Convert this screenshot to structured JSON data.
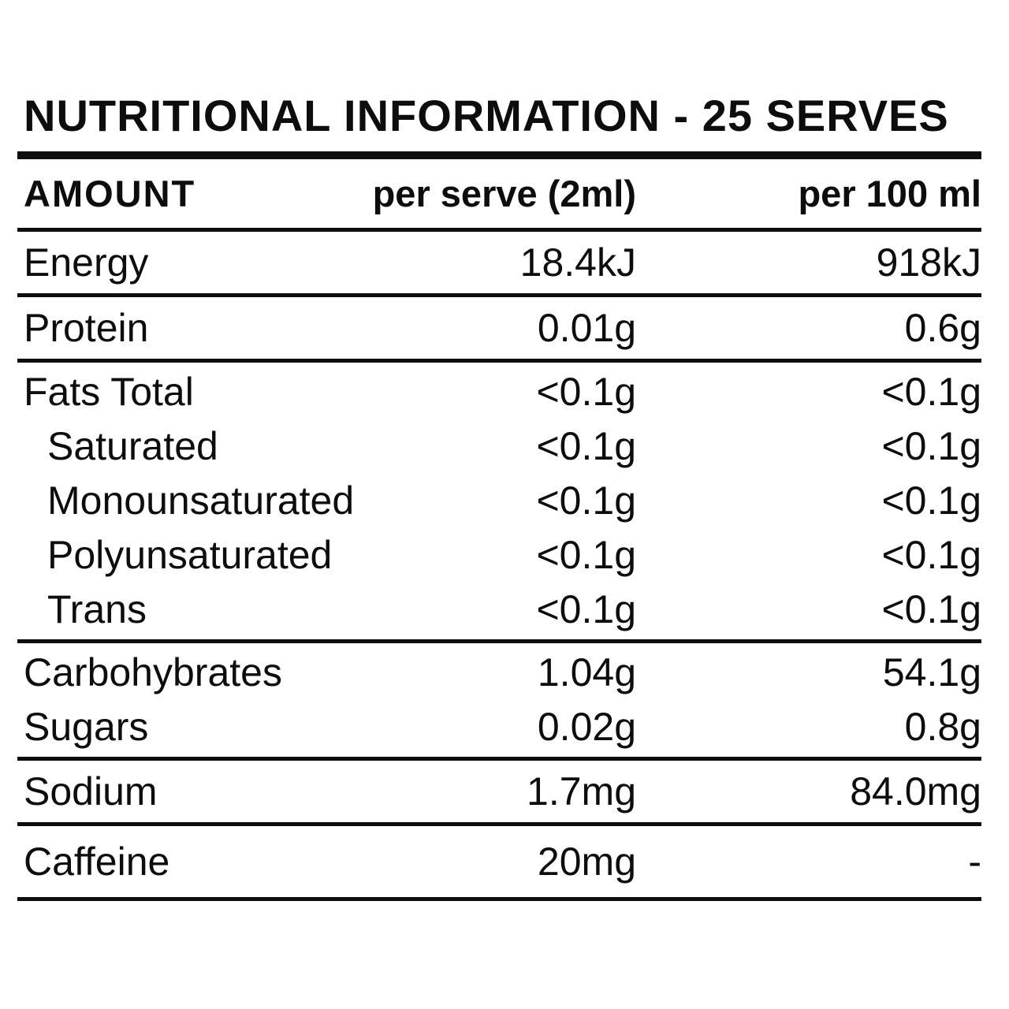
{
  "title": "NUTRITIONAL INFORMATION - 25 SERVES",
  "table": {
    "columns": [
      "AMOUNT",
      "per serve (2ml)",
      "per 100 ml"
    ],
    "sections": [
      {
        "rows": [
          {
            "label": "Energy",
            "per_serve": "18.4kJ",
            "per_100": "918kJ",
            "indent": false
          }
        ]
      },
      {
        "rows": [
          {
            "label": "Protein",
            "per_serve": "0.01g",
            "per_100": "0.6g",
            "indent": false
          }
        ]
      },
      {
        "rows": [
          {
            "label": "Fats Total",
            "per_serve": "<0.1g",
            "per_100": "<0.1g",
            "indent": false
          },
          {
            "label": "Saturated",
            "per_serve": "<0.1g",
            "per_100": "<0.1g",
            "indent": true
          },
          {
            "label": "Monounsaturated",
            "per_serve": "<0.1g",
            "per_100": "<0.1g",
            "indent": true
          },
          {
            "label": "Polyunsaturated",
            "per_serve": "<0.1g",
            "per_100": "<0.1g",
            "indent": true
          },
          {
            "label": "Trans",
            "per_serve": "<0.1g",
            "per_100": "<0.1g",
            "indent": true
          }
        ]
      },
      {
        "rows": [
          {
            "label": "Carbohybrates",
            "per_serve": "1.04g",
            "per_100": "54.1g",
            "indent": false
          },
          {
            "label": "Sugars",
            "per_serve": "0.02g",
            "per_100": "0.8g",
            "indent": false
          }
        ]
      },
      {
        "rows": [
          {
            "label": "Sodium",
            "per_serve": "1.7mg",
            "per_100": "84.0mg",
            "indent": false
          }
        ]
      },
      {
        "rows": [
          {
            "label": "Caffeine",
            "per_serve": "20mg",
            "per_100": "-",
            "indent": false
          }
        ]
      }
    ]
  },
  "colors": {
    "text": "#0d0d0d",
    "rule": "#0d0d0d",
    "background": "#ffffff"
  }
}
